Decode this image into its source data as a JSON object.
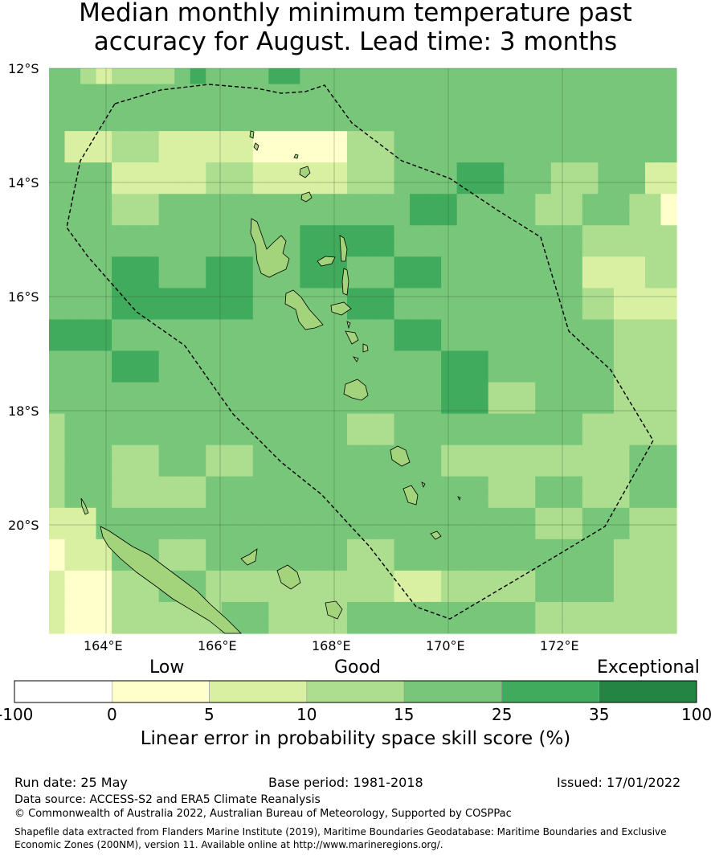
{
  "title": {
    "line1": "Median monthly minimum temperature past",
    "line2": "accuracy for August. Lead time: 3 months"
  },
  "map": {
    "lat_labels": [
      "12°S",
      "14°S",
      "16°S",
      "18°S",
      "20°S"
    ],
    "lon_labels": [
      "164°E",
      "166°E",
      "168°E",
      "170°E",
      "172°E"
    ],
    "boundary": "Vanuatu Exclusive Economic Zone (dashed)",
    "bins": [
      {
        "range": "-100 to 0",
        "color": "#ffffff"
      },
      {
        "range": "0 to 5",
        "color": "#ffffcc"
      },
      {
        "range": "5 to 10",
        "color": "#d9f0a3"
      },
      {
        "range": "10 to 15",
        "color": "#addd8e"
      },
      {
        "range": "15 to 25",
        "color": "#78c679"
      },
      {
        "range": "25 to 35",
        "color": "#41ab5d"
      },
      {
        "range": "35 to 100",
        "color": "#238443"
      }
    ],
    "grid_bin_index": [
      [
        4,
        4,
        3,
        2,
        3,
        3,
        3,
        3,
        4,
        5,
        4,
        4,
        4,
        4,
        5,
        5,
        4,
        4,
        4,
        4,
        4,
        4,
        4,
        4,
        4,
        4,
        4,
        4,
        4,
        4,
        4,
        4,
        4,
        4,
        4,
        4,
        4,
        4,
        4,
        4
      ],
      [
        4,
        4,
        4,
        4,
        4,
        4,
        4,
        4,
        4,
        4,
        4,
        4,
        4,
        4,
        4,
        4,
        4,
        4,
        4,
        4,
        4,
        4,
        4,
        4,
        4,
        4,
        4,
        4,
        4,
        4,
        4,
        4,
        4,
        4,
        4,
        4,
        4,
        4,
        4,
        4
      ],
      [
        4,
        4,
        4,
        4,
        4,
        4,
        4,
        4,
        4,
        4,
        4,
        4,
        4,
        4,
        4,
        4,
        4,
        4,
        4,
        4,
        4,
        4,
        4,
        4,
        4,
        4,
        4,
        4,
        4,
        4,
        4,
        4,
        4,
        4,
        4,
        4,
        4,
        4,
        4,
        4
      ],
      [
        4,
        4,
        4,
        4,
        4,
        4,
        4,
        4,
        4,
        4,
        4,
        4,
        4,
        4,
        4,
        4,
        4,
        4,
        4,
        4,
        4,
        4,
        4,
        4,
        4,
        4,
        4,
        4,
        4,
        4,
        4,
        4,
        4,
        4,
        4,
        4,
        4,
        4,
        4,
        4
      ],
      [
        4,
        2,
        2,
        2,
        3,
        3,
        3,
        2,
        2,
        2,
        2,
        2,
        2,
        1,
        1,
        1,
        1,
        1,
        1,
        3,
        3,
        3,
        4,
        4,
        4,
        4,
        4,
        4,
        4,
        4,
        4,
        4,
        4,
        4,
        4,
        4,
        4,
        4,
        4,
        4
      ],
      [
        4,
        2,
        2,
        2,
        3,
        3,
        3,
        2,
        2,
        2,
        2,
        2,
        2,
        1,
        1,
        1,
        1,
        1,
        1,
        3,
        3,
        3,
        4,
        4,
        4,
        4,
        4,
        4,
        4,
        4,
        4,
        4,
        4,
        4,
        4,
        4,
        4,
        4,
        4,
        4
      ],
      [
        4,
        4,
        4,
        4,
        2,
        2,
        2,
        2,
        2,
        2,
        3,
        3,
        3,
        2,
        2,
        2,
        2,
        2,
        2,
        3,
        3,
        3,
        4,
        4,
        4,
        4,
        5,
        5,
        5,
        4,
        4,
        4,
        3,
        3,
        3,
        4,
        4,
        4,
        2,
        2
      ],
      [
        4,
        4,
        4,
        4,
        2,
        2,
        2,
        2,
        2,
        2,
        3,
        3,
        3,
        2,
        2,
        2,
        2,
        2,
        2,
        3,
        3,
        3,
        4,
        4,
        4,
        4,
        5,
        5,
        5,
        4,
        4,
        4,
        3,
        3,
        3,
        4,
        4,
        4,
        2,
        2
      ],
      [
        4,
        4,
        4,
        4,
        3,
        3,
        3,
        4,
        4,
        4,
        4,
        4,
        4,
        4,
        4,
        4,
        4,
        4,
        4,
        4,
        4,
        4,
        4,
        5,
        5,
        5,
        4,
        4,
        4,
        4,
        4,
        3,
        3,
        3,
        4,
        4,
        4,
        3,
        3,
        1
      ],
      [
        4,
        4,
        4,
        4,
        3,
        3,
        3,
        4,
        4,
        4,
        4,
        4,
        4,
        4,
        4,
        4,
        4,
        4,
        4,
        4,
        4,
        4,
        4,
        5,
        5,
        5,
        4,
        4,
        4,
        4,
        4,
        3,
        3,
        3,
        4,
        4,
        4,
        3,
        3,
        1
      ],
      [
        4,
        4,
        4,
        4,
        4,
        4,
        4,
        4,
        4,
        4,
        4,
        4,
        4,
        4,
        4,
        4,
        5,
        5,
        5,
        5,
        5,
        5,
        4,
        4,
        4,
        4,
        4,
        4,
        4,
        4,
        4,
        4,
        4,
        4,
        3,
        3,
        3,
        3,
        3,
        3
      ],
      [
        4,
        4,
        4,
        4,
        4,
        4,
        4,
        4,
        4,
        4,
        4,
        4,
        4,
        4,
        4,
        4,
        5,
        5,
        5,
        5,
        5,
        5,
        4,
        4,
        4,
        4,
        4,
        4,
        4,
        4,
        4,
        4,
        4,
        4,
        3,
        3,
        3,
        3,
        3,
        3
      ],
      [
        4,
        4,
        4,
        4,
        5,
        5,
        5,
        4,
        4,
        4,
        5,
        5,
        5,
        4,
        4,
        4,
        5,
        5,
        5,
        4,
        4,
        4,
        5,
        5,
        5,
        4,
        4,
        4,
        4,
        4,
        4,
        4,
        4,
        4,
        2,
        2,
        2,
        2,
        3,
        3
      ],
      [
        4,
        4,
        4,
        4,
        5,
        5,
        5,
        4,
        4,
        4,
        5,
        5,
        5,
        4,
        4,
        4,
        5,
        5,
        5,
        4,
        4,
        4,
        5,
        5,
        5,
        4,
        4,
        4,
        4,
        4,
        4,
        4,
        4,
        4,
        2,
        2,
        2,
        2,
        3,
        3
      ],
      [
        4,
        4,
        4,
        4,
        5,
        5,
        5,
        5,
        5,
        5,
        5,
        5,
        5,
        4,
        4,
        4,
        4,
        4,
        4,
        5,
        5,
        5,
        4,
        4,
        4,
        4,
        4,
        4,
        4,
        4,
        4,
        4,
        4,
        4,
        3,
        3,
        2,
        2,
        2,
        2
      ],
      [
        4,
        4,
        4,
        4,
        5,
        5,
        5,
        5,
        5,
        5,
        5,
        5,
        5,
        4,
        4,
        4,
        4,
        4,
        4,
        5,
        5,
        5,
        4,
        4,
        4,
        4,
        4,
        4,
        4,
        4,
        4,
        4,
        4,
        4,
        3,
        3,
        2,
        2,
        2,
        2
      ],
      [
        5,
        5,
        5,
        5,
        4,
        4,
        4,
        4,
        4,
        4,
        4,
        4,
        4,
        4,
        4,
        4,
        4,
        4,
        4,
        4,
        4,
        4,
        5,
        5,
        5,
        4,
        4,
        4,
        4,
        4,
        4,
        4,
        4,
        4,
        4,
        4,
        3,
        3,
        3,
        3
      ],
      [
        5,
        5,
        5,
        5,
        4,
        4,
        4,
        4,
        4,
        4,
        4,
        4,
        4,
        4,
        4,
        4,
        4,
        4,
        4,
        4,
        4,
        4,
        5,
        5,
        5,
        4,
        4,
        4,
        4,
        4,
        4,
        4,
        4,
        4,
        4,
        4,
        3,
        3,
        3,
        3
      ],
      [
        4,
        4,
        4,
        4,
        5,
        5,
        5,
        4,
        4,
        4,
        4,
        4,
        4,
        4,
        4,
        4,
        4,
        4,
        4,
        4,
        4,
        4,
        4,
        4,
        4,
        5,
        5,
        5,
        4,
        4,
        4,
        4,
        4,
        4,
        4,
        4,
        3,
        3,
        3,
        3
      ],
      [
        4,
        4,
        4,
        4,
        5,
        5,
        5,
        4,
        4,
        4,
        4,
        4,
        4,
        4,
        4,
        4,
        4,
        4,
        4,
        4,
        4,
        4,
        4,
        4,
        4,
        5,
        5,
        5,
        4,
        4,
        4,
        4,
        4,
        4,
        4,
        4,
        3,
        3,
        3,
        3
      ],
      [
        4,
        4,
        4,
        4,
        4,
        4,
        4,
        4,
        4,
        4,
        4,
        4,
        4,
        4,
        4,
        4,
        4,
        4,
        4,
        4,
        4,
        4,
        4,
        4,
        4,
        5,
        5,
        5,
        3,
        3,
        3,
        4,
        4,
        4,
        4,
        4,
        3,
        3,
        3,
        3
      ],
      [
        4,
        4,
        4,
        4,
        4,
        4,
        4,
        4,
        4,
        4,
        4,
        4,
        4,
        4,
        4,
        4,
        4,
        4,
        4,
        4,
        4,
        4,
        4,
        4,
        4,
        5,
        5,
        5,
        3,
        3,
        3,
        4,
        4,
        4,
        4,
        4,
        3,
        3,
        3,
        3
      ],
      [
        3,
        4,
        4,
        4,
        4,
        4,
        4,
        4,
        4,
        4,
        4,
        4,
        4,
        4,
        4,
        4,
        4,
        4,
        4,
        3,
        3,
        3,
        4,
        4,
        4,
        4,
        4,
        4,
        4,
        4,
        4,
        4,
        4,
        4,
        3,
        3,
        3,
        3,
        3,
        3
      ],
      [
        3,
        4,
        4,
        4,
        4,
        4,
        4,
        4,
        4,
        4,
        4,
        4,
        4,
        4,
        4,
        4,
        4,
        4,
        4,
        3,
        3,
        3,
        4,
        4,
        4,
        4,
        4,
        4,
        4,
        4,
        4,
        4,
        4,
        4,
        3,
        3,
        3,
        3,
        3,
        3
      ],
      [
        3,
        4,
        4,
        4,
        3,
        3,
        3,
        4,
        4,
        4,
        3,
        3,
        3,
        4,
        4,
        4,
        4,
        4,
        4,
        4,
        4,
        4,
        4,
        4,
        4,
        3,
        3,
        3,
        3,
        3,
        3,
        3,
        3,
        3,
        3,
        3,
        3,
        4,
        4,
        4
      ],
      [
        3,
        4,
        4,
        4,
        3,
        3,
        3,
        4,
        4,
        4,
        3,
        3,
        3,
        4,
        4,
        4,
        4,
        4,
        4,
        4,
        4,
        4,
        4,
        4,
        4,
        3,
        3,
        3,
        3,
        3,
        3,
        3,
        3,
        3,
        3,
        3,
        3,
        4,
        4,
        4
      ],
      [
        3,
        4,
        4,
        4,
        3,
        3,
        3,
        3,
        3,
        3,
        4,
        4,
        4,
        4,
        4,
        4,
        4,
        4,
        4,
        4,
        4,
        4,
        4,
        4,
        4,
        4,
        4,
        4,
        3,
        3,
        3,
        4,
        4,
        4,
        3,
        3,
        3,
        4,
        4,
        4
      ],
      [
        3,
        4,
        4,
        4,
        3,
        3,
        3,
        3,
        3,
        3,
        4,
        4,
        4,
        4,
        4,
        4,
        4,
        4,
        4,
        4,
        4,
        4,
        4,
        4,
        4,
        4,
        4,
        4,
        3,
        3,
        3,
        4,
        4,
        4,
        3,
        3,
        3,
        4,
        4,
        4
      ],
      [
        2,
        2,
        2,
        4,
        4,
        4,
        4,
        4,
        4,
        4,
        4,
        4,
        4,
        4,
        4,
        4,
        4,
        4,
        4,
        4,
        4,
        4,
        4,
        4,
        4,
        4,
        4,
        4,
        4,
        4,
        4,
        3,
        3,
        3,
        4,
        4,
        4,
        3,
        3,
        3
      ],
      [
        2,
        2,
        2,
        4,
        4,
        4,
        4,
        4,
        4,
        4,
        4,
        4,
        4,
        4,
        4,
        4,
        4,
        4,
        4,
        4,
        4,
        4,
        4,
        4,
        4,
        4,
        4,
        4,
        4,
        4,
        4,
        3,
        3,
        3,
        4,
        4,
        4,
        3,
        3,
        3
      ],
      [
        1,
        2,
        2,
        2,
        4,
        4,
        4,
        3,
        3,
        3,
        4,
        4,
        4,
        4,
        4,
        4,
        4,
        4,
        4,
        3,
        3,
        3,
        4,
        4,
        4,
        4,
        4,
        4,
        4,
        4,
        4,
        4,
        4,
        4,
        4,
        4,
        3,
        3,
        3,
        3
      ],
      [
        1,
        2,
        2,
        2,
        4,
        4,
        4,
        3,
        3,
        3,
        4,
        4,
        4,
        4,
        4,
        4,
        4,
        4,
        4,
        3,
        3,
        3,
        4,
        4,
        4,
        4,
        4,
        4,
        4,
        4,
        4,
        4,
        4,
        4,
        4,
        4,
        3,
        3,
        3,
        3
      ],
      [
        2,
        1,
        1,
        1,
        3,
        3,
        3,
        4,
        4,
        4,
        3,
        3,
        3,
        3,
        3,
        3,
        3,
        3,
        3,
        3,
        3,
        3,
        2,
        2,
        2,
        3,
        3,
        3,
        3,
        3,
        3,
        4,
        4,
        4,
        4,
        4,
        3,
        3,
        3,
        3
      ],
      [
        2,
        1,
        1,
        1,
        3,
        3,
        3,
        4,
        4,
        4,
        3,
        3,
        3,
        3,
        3,
        3,
        3,
        3,
        3,
        3,
        3,
        3,
        2,
        2,
        2,
        3,
        3,
        3,
        3,
        3,
        3,
        4,
        4,
        4,
        4,
        4,
        3,
        3,
        3,
        3
      ],
      [
        2,
        1,
        1,
        1,
        3,
        3,
        3,
        3,
        3,
        3,
        3,
        4,
        4,
        4,
        3,
        3,
        3,
        3,
        3,
        4,
        4,
        4,
        4,
        4,
        4,
        4,
        4,
        4,
        4,
        4,
        4,
        3,
        3,
        3,
        3,
        3,
        3,
        3,
        3,
        3
      ],
      [
        2,
        1,
        1,
        1,
        3,
        3,
        3,
        3,
        3,
        3,
        3,
        4,
        4,
        4,
        3,
        3,
        3,
        3,
        3,
        4,
        4,
        4,
        4,
        4,
        4,
        4,
        4,
        4,
        4,
        4,
        4,
        3,
        3,
        3,
        3,
        3,
        3,
        3,
        3,
        3
      ]
    ]
  },
  "colorbar": {
    "category_labels": [
      "Low",
      "Good",
      "Exceptional"
    ],
    "tick_labels": [
      "-100",
      "0",
      "5",
      "10",
      "15",
      "25",
      "35",
      "100"
    ],
    "label": "Linear error in probability space skill score (%)"
  },
  "footer": {
    "run_date": "Run date: 25 May",
    "base_period": "Base period: 1981-2018",
    "issued": "Issued: 17/01/2022",
    "data_source": "Data source: ACCESS-S2 and ERA5 Climate Reanalysis",
    "copyright": "© Commonwealth of Australia 2022, Australian Bureau of Meteorology, Supported by COSPPac",
    "shapefile_line1": "Shapefile data extracted from Flanders Marine Institute (2019), Maritime Boundaries Geodatabase: Maritime Boundaries and Exclusive",
    "shapefile_line2": "Economic Zones (200NM), version 11. Available online at http://www.marineregions.org/."
  }
}
